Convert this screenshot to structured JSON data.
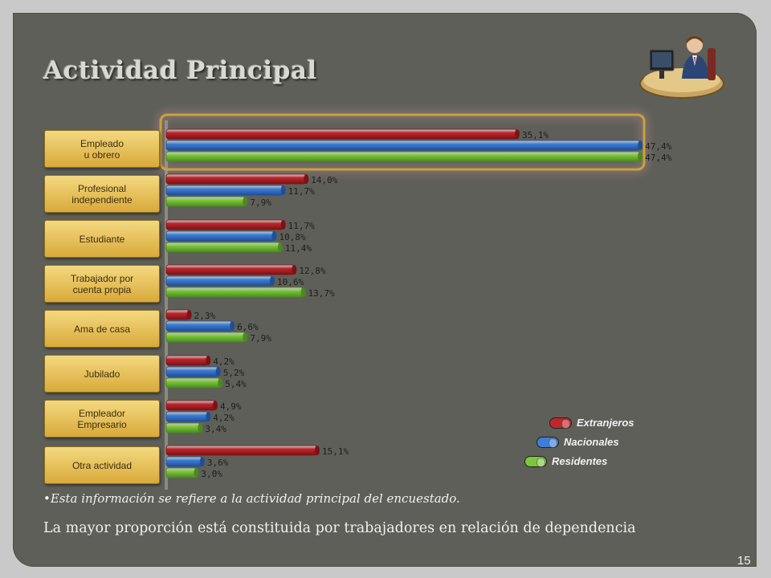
{
  "slide": {
    "title": "Actividad Principal",
    "note": "•Esta información se refiere a la actividad principal del encuestado.",
    "conclusion": "La mayor proporción está constituida por trabajadores en relación de dependencia",
    "page_number": "15",
    "icon": "office-worker-at-desk-icon"
  },
  "colors": {
    "Extranjeros": "#c0262c",
    "Nacionales": "#3d7fd8",
    "Residentes": "#7cc83a"
  },
  "chart_data": {
    "type": "bar",
    "orientation": "horizontal",
    "title": "",
    "categories": [
      "Empleado\nu obrero",
      "Profesional\nindependiente",
      "Estudiante",
      "Trabajador por\ncuenta propia",
      "Ama de casa",
      "Jubilado",
      "Empleador\nEmpresario",
      "Otra actividad"
    ],
    "series": [
      {
        "name": "Extranjeros",
        "values": [
          35.1,
          14.0,
          11.7,
          12.8,
          2.3,
          4.2,
          4.9,
          15.1
        ],
        "labels": [
          "35,1%",
          "14,0%",
          "11,7%",
          "12,8%",
          "2,3%",
          "4,2%",
          "4,9%",
          "15,1%"
        ]
      },
      {
        "name": "Nacionales",
        "values": [
          47.4,
          11.7,
          10.8,
          10.6,
          6.6,
          5.2,
          4.2,
          3.6
        ],
        "labels": [
          "47,4%",
          "11,7%",
          "10,8%",
          "10,6%",
          "6,6%",
          "5,2%",
          "4,2%",
          "3,6%"
        ]
      },
      {
        "name": "Residentes",
        "values": [
          47.4,
          7.9,
          11.4,
          13.7,
          7.9,
          5.4,
          3.4,
          3.0
        ],
        "labels": [
          "47,4%",
          "7,9%",
          "11,4%",
          "13,7%",
          "7,9%",
          "5,4%",
          "3,4%",
          "3,0%"
        ]
      }
    ],
    "legend_position": "bottom-right",
    "highlighted_category": "Empleado\nu obrero",
    "grid": false
  }
}
